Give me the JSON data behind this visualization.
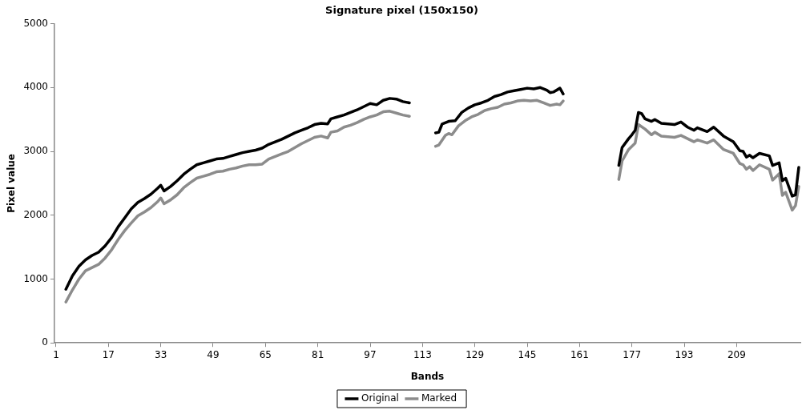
{
  "chart_data": {
    "type": "line",
    "title": "Signature pixel (150x150)",
    "xlabel": "Bands",
    "ylabel": "Pixel value",
    "xlim": [
      0.5,
      228.5
    ],
    "xticks": [
      1,
      17,
      33,
      49,
      65,
      81,
      97,
      113,
      129,
      145,
      161,
      177,
      193,
      209
    ],
    "ylim": [
      0,
      5000
    ],
    "yticks": [
      0,
      1000,
      2000,
      3000,
      4000,
      5000
    ],
    "grid": false,
    "legend": "bottom",
    "marker": "none",
    "line_style": "solid",
    "series": [
      {
        "name": "Original",
        "color": "#000000",
        "x": [
          4,
          6,
          8,
          10,
          12,
          14,
          16,
          18,
          20,
          22,
          24,
          26,
          28,
          30,
          32,
          33,
          34,
          36,
          38,
          40,
          42,
          44,
          46,
          48,
          50,
          52,
          54,
          56,
          58,
          60,
          62,
          64,
          66,
          68,
          70,
          72,
          74,
          76,
          78,
          80,
          82,
          84,
          85,
          87,
          89,
          91,
          93,
          95,
          97,
          99,
          101,
          103,
          105,
          107,
          109,
          113,
          117,
          118,
          119,
          121,
          123,
          125,
          127,
          129,
          131,
          133,
          135,
          137,
          139,
          141,
          143,
          145,
          147,
          149,
          151,
          152,
          153,
          155,
          156,
          165,
          173,
          174,
          176,
          177,
          178,
          179,
          180,
          181,
          183,
          184,
          186,
          190,
          192,
          194,
          196,
          197,
          200,
          202,
          205,
          208,
          210,
          211,
          212,
          213,
          214,
          216,
          219,
          220,
          222,
          223,
          224,
          226,
          227,
          228
        ],
        "values": [
          840,
          1050,
          1200,
          1300,
          1370,
          1420,
          1520,
          1650,
          1820,
          1960,
          2100,
          2200,
          2260,
          2330,
          2420,
          2470,
          2380,
          2450,
          2540,
          2640,
          2720,
          2790,
          2820,
          2850,
          2880,
          2890,
          2920,
          2950,
          2980,
          3000,
          3020,
          3050,
          3110,
          3150,
          3190,
          3240,
          3290,
          3330,
          3370,
          3420,
          3440,
          3430,
          3510,
          3540,
          3570,
          3610,
          3650,
          3700,
          3750,
          3730,
          3800,
          3830,
          3820,
          3780,
          3760,
          null,
          3290,
          3300,
          3430,
          3470,
          3480,
          3610,
          3680,
          3730,
          3760,
          3800,
          3860,
          3890,
          3930,
          3950,
          3970,
          3990,
          3980,
          4000,
          3960,
          3920,
          3930,
          3990,
          3900,
          null,
          2780,
          3060,
          3200,
          3260,
          3330,
          3610,
          3590,
          3510,
          3470,
          3500,
          3440,
          3420,
          3460,
          3380,
          3330,
          3370,
          3310,
          3380,
          3240,
          3150,
          3010,
          3000,
          2910,
          2940,
          2900,
          2970,
          2930,
          2780,
          2820,
          2540,
          2580,
          2300,
          2320,
          2750
        ]
      },
      {
        "name": "Marked",
        "color": "#8c8c8c",
        "x": [
          4,
          6,
          8,
          10,
          12,
          14,
          16,
          18,
          20,
          22,
          24,
          26,
          28,
          30,
          32,
          33,
          34,
          36,
          38,
          40,
          42,
          44,
          46,
          48,
          50,
          52,
          54,
          56,
          58,
          60,
          62,
          64,
          66,
          68,
          70,
          72,
          74,
          76,
          78,
          80,
          82,
          84,
          85,
          87,
          89,
          91,
          93,
          95,
          97,
          99,
          101,
          103,
          105,
          107,
          109,
          113,
          117,
          118,
          120,
          121,
          122,
          124,
          126,
          128,
          130,
          132,
          134,
          136,
          138,
          140,
          142,
          144,
          146,
          148,
          150,
          152,
          154,
          155,
          156,
          165,
          173,
          174,
          176,
          177,
          178,
          179,
          181,
          183,
          184,
          186,
          190,
          192,
          196,
          197,
          200,
          202,
          205,
          208,
          210,
          211,
          212,
          213,
          214,
          216,
          219,
          220,
          222,
          223,
          224,
          226,
          227,
          228
        ],
        "values": [
          640,
          830,
          1000,
          1130,
          1180,
          1230,
          1330,
          1460,
          1620,
          1760,
          1880,
          1990,
          2050,
          2120,
          2210,
          2270,
          2180,
          2240,
          2320,
          2430,
          2510,
          2580,
          2610,
          2640,
          2680,
          2690,
          2720,
          2740,
          2770,
          2790,
          2790,
          2800,
          2880,
          2920,
          2960,
          3000,
          3060,
          3120,
          3170,
          3220,
          3240,
          3210,
          3300,
          3320,
          3380,
          3410,
          3450,
          3500,
          3540,
          3570,
          3620,
          3630,
          3600,
          3570,
          3550,
          null,
          3080,
          3100,
          3250,
          3280,
          3260,
          3400,
          3480,
          3540,
          3580,
          3640,
          3670,
          3690,
          3740,
          3760,
          3790,
          3800,
          3790,
          3800,
          3760,
          3720,
          3740,
          3730,
          3790,
          null,
          2560,
          2850,
          3030,
          3080,
          3130,
          3420,
          3350,
          3260,
          3300,
          3240,
          3220,
          3250,
          3150,
          3180,
          3130,
          3180,
          3030,
          2970,
          2810,
          2790,
          2720,
          2760,
          2700,
          2790,
          2720,
          2550,
          2650,
          2310,
          2360,
          2080,
          2150,
          2450
        ]
      }
    ]
  }
}
